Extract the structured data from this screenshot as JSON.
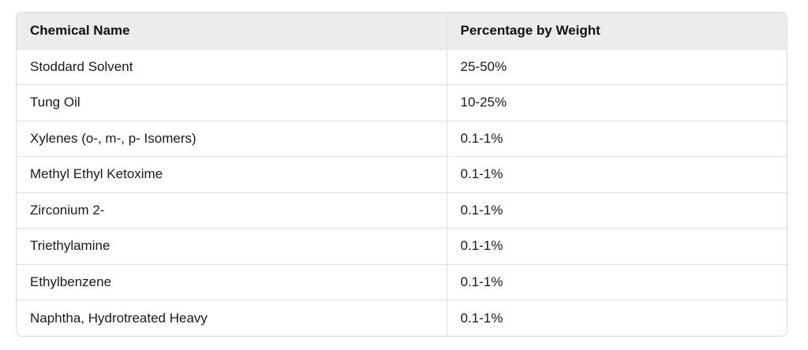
{
  "table": {
    "headers": [
      "Chemical Name",
      "Percentage by Weight"
    ],
    "rows": [
      [
        "Stoddard Solvent",
        "25-50%"
      ],
      [
        "Tung Oil",
        "10-25%"
      ],
      [
        "Xylenes (o-, m-, p- Isomers)",
        "0.1-1%"
      ],
      [
        "Methyl Ethyl Ketoxime",
        "0.1-1%"
      ],
      [
        "Zirconium 2-",
        "0.1-1%"
      ],
      [
        "Triethylamine",
        "0.1-1%"
      ],
      [
        "Ethylbenzene",
        "0.1-1%"
      ],
      [
        "Naphtha, Hydrotreated Heavy",
        "0.1-1%"
      ]
    ]
  }
}
